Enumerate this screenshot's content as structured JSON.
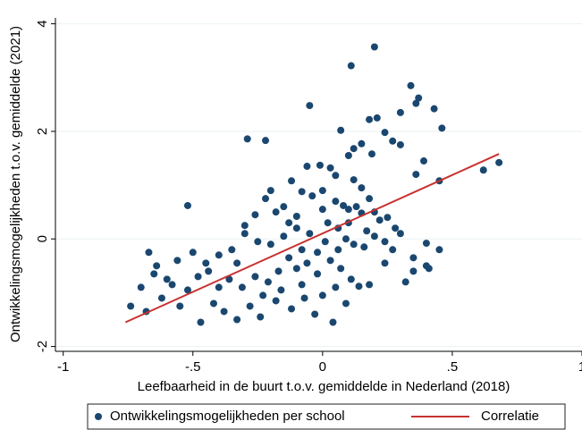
{
  "chart_data": {
    "type": "scatter",
    "x_label": "Leefbaarheid in de buurt t.o.v. gemiddelde in Nederland (2018)",
    "y_label": "Ontwikkelingsmogelijkheden t.o.v. gemiddelde (2021)",
    "xlim": [
      -1.03,
      1
    ],
    "ylim": [
      -2.09,
      4.11
    ],
    "xticks": [
      -1,
      {
        "value": -0.5,
        "label": "-.5"
      },
      0,
      {
        "value": 0.5,
        "label": ".5"
      },
      1
    ],
    "yticks": [
      -2,
      0,
      2,
      4
    ],
    "grid": true,
    "legend": "bottom",
    "series": [
      {
        "name": "Ontwikkelingsmogelijkheden per school",
        "type": "scatter",
        "color": "#1a476f",
        "x": [
          0.11,
          0.2,
          0.34,
          0.37,
          0.36,
          0.43,
          0.46,
          -0.05,
          0.07,
          0.18,
          0.21,
          0.3,
          -0.29,
          -0.22,
          0.24,
          0.27,
          0.3,
          0.15,
          0.12,
          0.39,
          0.36,
          0.45,
          0.62,
          0.68,
          0.19,
          0.1,
          -0.01,
          0.03,
          -0.06,
          0.05,
          0.12,
          -0.12,
          -0.08,
          -0.2,
          -0.15,
          -0.22,
          -0.26,
          -0.3,
          -0.52,
          -0.18,
          -0.1,
          0.0,
          0.05,
          0.08,
          0.1,
          0.13,
          0.15,
          0.2,
          0.22,
          0.25,
          0.28,
          0.3,
          0.02,
          0.06,
          0.09,
          0.12,
          0.16,
          0.2,
          0.24,
          0.27,
          0.35,
          0.4,
          0.45,
          0.4,
          -0.05,
          -0.1,
          -0.15,
          -0.2,
          -0.25,
          -0.3,
          -0.35,
          -0.02,
          0.03,
          0.07,
          0.11,
          0.14,
          0.05,
          -0.02,
          -0.06,
          -0.1,
          -0.13,
          -0.17,
          -0.21,
          -0.26,
          -0.31,
          -0.36,
          -0.4,
          -0.44,
          -0.48,
          -0.52,
          -0.56,
          -0.6,
          -0.64,
          -0.67,
          -0.7,
          -0.74,
          -0.68,
          -0.62,
          -0.55,
          -0.47,
          -0.42,
          -0.38,
          -0.33,
          -0.28,
          -0.24,
          -0.18,
          -0.12,
          -0.07,
          -0.03,
          0.0,
          0.04,
          0.09,
          -0.08,
          -0.16,
          -0.23,
          0.18,
          0.32,
          0.24,
          0.35,
          0.41,
          -0.45,
          -0.5,
          -0.58,
          -0.65,
          -0.4,
          -0.33,
          0.0,
          0.15,
          0.18,
          -0.04,
          -0.13,
          0.1,
          0.17,
          0.01,
          -0.08,
          0.06
        ],
        "values": [
          3.22,
          3.57,
          2.85,
          2.62,
          2.52,
          2.42,
          2.06,
          2.48,
          2.02,
          2.22,
          2.25,
          2.35,
          1.86,
          1.83,
          1.98,
          1.82,
          1.75,
          1.77,
          1.68,
          1.45,
          1.2,
          1.08,
          1.28,
          1.42,
          1.58,
          1.55,
          1.37,
          1.32,
          1.35,
          1.18,
          1.1,
          1.08,
          0.88,
          0.9,
          0.6,
          0.75,
          0.45,
          0.25,
          0.62,
          0.5,
          0.42,
          0.55,
          0.7,
          0.62,
          0.55,
          0.6,
          0.48,
          0.5,
          0.35,
          0.4,
          0.2,
          0.1,
          0.3,
          0.2,
          0.0,
          -0.1,
          -0.15,
          0.05,
          -0.05,
          -0.2,
          -0.35,
          -0.5,
          -0.2,
          -0.08,
          0.1,
          0.2,
          0.05,
          -0.1,
          -0.05,
          0.1,
          -0.2,
          -0.25,
          -0.4,
          -0.55,
          -0.75,
          -0.88,
          -0.9,
          -0.65,
          -0.45,
          -0.55,
          -0.35,
          -0.6,
          -0.8,
          -0.7,
          -0.9,
          -0.75,
          -0.9,
          -0.6,
          -0.7,
          -0.95,
          -0.4,
          -0.75,
          -0.5,
          -0.25,
          -0.9,
          -1.25,
          -1.35,
          -1.1,
          -1.25,
          -1.55,
          -1.2,
          -1.35,
          -1.5,
          -1.25,
          -1.45,
          -1.15,
          -1.3,
          -1.1,
          -1.4,
          -1.05,
          -1.55,
          -1.2,
          -0.85,
          -0.95,
          -1.05,
          -0.85,
          -0.8,
          -0.45,
          -0.6,
          -0.55,
          -0.45,
          -0.25,
          -0.85,
          -0.65,
          -0.3,
          -0.45,
          0.9,
          0.95,
          0.75,
          0.8,
          0.3,
          0.3,
          0.15,
          -0.05,
          -0.2,
          -0.2
        ]
      },
      {
        "name": "Correlatie",
        "type": "line",
        "color": "#c8312f",
        "x": [
          -0.76,
          0.68
        ],
        "values": [
          -1.55,
          1.58
        ]
      }
    ]
  }
}
